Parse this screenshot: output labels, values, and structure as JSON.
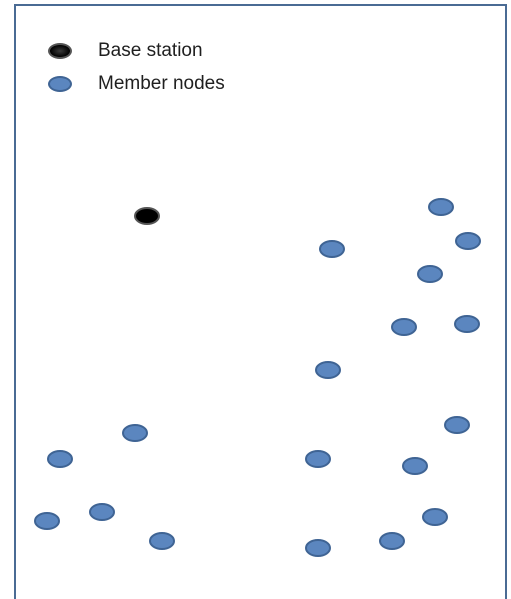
{
  "legend": {
    "base_station_label": "Base station",
    "member_nodes_label": "Member nodes"
  },
  "colors": {
    "frame": "#4a6b94",
    "member_fill": "#5b86bf",
    "member_stroke": "#3f6494",
    "base_fill": "#000000",
    "base_stroke": "#555555"
  },
  "base_station_count": 1,
  "member_node_count": 21
}
